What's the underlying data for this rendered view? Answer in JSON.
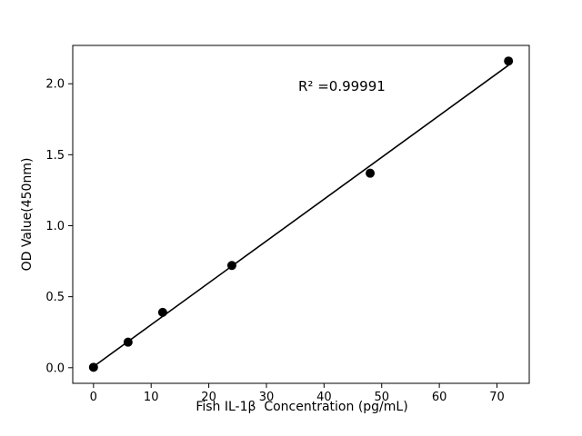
{
  "figure": {
    "background_color": "#ffffff"
  },
  "chart_data": {
    "type": "scatter",
    "title": "",
    "xlabel": "Fish IL-1β  Concentration (pg/mL)",
    "ylabel": "OD Value(450nm)",
    "annotation": "R² =0.99991",
    "x": [
      0,
      6,
      12,
      24,
      48,
      72
    ],
    "y": [
      0.003,
      0.18,
      0.39,
      0.72,
      1.37,
      2.16
    ],
    "fit_line": {
      "type": "linear",
      "r_squared": 0.99991
    },
    "xlim": [
      -3.6,
      75.6
    ],
    "ylim": [
      -0.11,
      2.27
    ],
    "xticks": [
      0,
      10,
      20,
      30,
      40,
      50,
      60,
      70
    ],
    "xtick_labels": [
      "0",
      "10",
      "20",
      "30",
      "40",
      "50",
      "60",
      "70"
    ],
    "yticks": [
      0.0,
      0.5,
      1.0,
      1.5,
      2.0
    ],
    "ytick_labels": [
      "0.0",
      "0.5",
      "1.0",
      "1.5",
      "2.0"
    ],
    "grid": false,
    "legend": false,
    "marker_color": "#000000",
    "line_color": "#000000"
  }
}
